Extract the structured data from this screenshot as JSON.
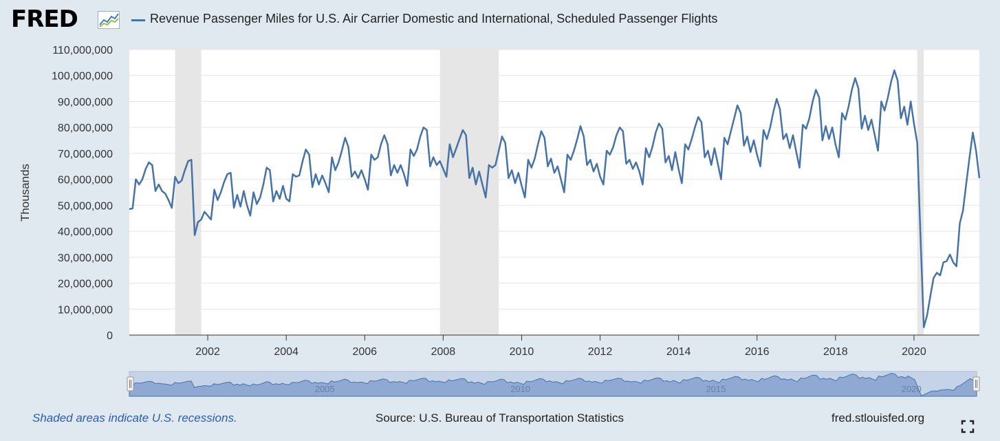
{
  "header": {
    "logo": "FRED",
    "logo_icon": "line-graph-icon",
    "title": "Revenue Passenger Miles for U.S. Air Carrier Domestic and International, Scheduled Passenger Flights"
  },
  "footer": {
    "footnote": "Shaded areas indicate U.S. recessions.",
    "source": "Source: U.S. Bureau of Transportation Statistics",
    "site": "fred.stlouisfed.org",
    "expand_icon": "fullscreen-icon"
  },
  "colors": {
    "series": "#4572a7",
    "recession": "#e6e6e6",
    "background": "#e1e9f0",
    "navigator_fill": "#8fa9d3"
  },
  "chart_data": {
    "type": "line",
    "title": "Revenue Passenger Miles for U.S. Air Carrier Domestic and International, Scheduled Passenger Flights",
    "xlabel": "",
    "ylabel": "Thousands",
    "x_start": "2000-01",
    "x_end": "2021-09",
    "ylim": [
      0,
      110000000
    ],
    "y_ticks": [
      0,
      10000000,
      20000000,
      30000000,
      40000000,
      50000000,
      60000000,
      70000000,
      80000000,
      90000000,
      100000000,
      110000000
    ],
    "x_ticks": [
      "2002",
      "2004",
      "2006",
      "2008",
      "2010",
      "2012",
      "2014",
      "2016",
      "2018",
      "2020"
    ],
    "navigator_ticks": [
      "2005",
      "2010",
      "2015",
      "2020"
    ],
    "recessions": [
      [
        "2001-03",
        "2001-11"
      ],
      [
        "2007-12",
        "2009-06"
      ],
      [
        "2020-02",
        "2020-04"
      ]
    ],
    "grid": true,
    "legend": "top-left",
    "series": [
      {
        "name": "Revenue Passenger Miles for U.S. Air Carrier Domestic and International, Scheduled Passenger Flights",
        "values": [
          48500000,
          48800000,
          60000000,
          58000000,
          60000000,
          64000000,
          66500000,
          65500000,
          55500000,
          58000000,
          55500000,
          54500000,
          52000000,
          49000000,
          61000000,
          58500000,
          59500000,
          63500000,
          67000000,
          67500000,
          38500000,
          43500000,
          44500000,
          47500000,
          46000000,
          44500000,
          56000000,
          52000000,
          55000000,
          59000000,
          62000000,
          62500000,
          49000000,
          54000000,
          49500000,
          55500000,
          50000000,
          46000000,
          55000000,
          50500000,
          53000000,
          58000000,
          64500000,
          63500000,
          51500000,
          55500000,
          52500000,
          57500000,
          52500000,
          51500000,
          62000000,
          61000000,
          61500000,
          67000000,
          71500000,
          69500000,
          57000000,
          62000000,
          58000000,
          61500000,
          58500000,
          55000000,
          68500000,
          63500000,
          66500000,
          71000000,
          76000000,
          72500000,
          61000000,
          63000000,
          60500000,
          63500000,
          60000000,
          56000000,
          69500000,
          67500000,
          68500000,
          73500000,
          77000000,
          73500000,
          61500000,
          65500000,
          62500000,
          65500000,
          62000000,
          57500000,
          71500000,
          69000000,
          71500000,
          76500000,
          80000000,
          79000000,
          65000000,
          68500000,
          65500000,
          67000000,
          64000000,
          61000000,
          73500000,
          68500000,
          72000000,
          75500000,
          79000000,
          77000000,
          60500000,
          64500000,
          58000000,
          63000000,
          58000000,
          53000000,
          65500000,
          64500000,
          65500000,
          71000000,
          76500000,
          74000000,
          60500000,
          63500000,
          58500000,
          62500000,
          57500000,
          53000000,
          67500000,
          64500000,
          68000000,
          73500000,
          78500000,
          76000000,
          65000000,
          68000000,
          62500000,
          65000000,
          60000000,
          55000000,
          69500000,
          67500000,
          71000000,
          75500000,
          80500000,
          76500000,
          65500000,
          67500000,
          63000000,
          66000000,
          61000000,
          58000000,
          71000000,
          69500000,
          72500000,
          77000000,
          80000000,
          78500000,
          66000000,
          67500000,
          64000000,
          66500000,
          63000000,
          58000000,
          72000000,
          68500000,
          72500000,
          78000000,
          81500000,
          79500000,
          66500000,
          69000000,
          63500000,
          70500000,
          64000000,
          58500000,
          73500000,
          71500000,
          75500000,
          80000000,
          84000000,
          82000000,
          68500000,
          71000000,
          65500000,
          72000000,
          66000000,
          60000000,
          76000000,
          73500000,
          78500000,
          83500000,
          88500000,
          85500000,
          73000000,
          76500000,
          70500000,
          75000000,
          69500000,
          65000000,
          79000000,
          75500000,
          80000000,
          86000000,
          91000000,
          87000000,
          75500000,
          77500000,
          72000000,
          77000000,
          70500000,
          64500000,
          81000000,
          79500000,
          83500000,
          90000000,
          94500000,
          91500000,
          75000000,
          80500000,
          75500000,
          80000000,
          73500000,
          68500000,
          85500000,
          83000000,
          88000000,
          94500000,
          99000000,
          95000000,
          79500000,
          84500000,
          79000000,
          83000000,
          77000000,
          71000000,
          90000000,
          86500000,
          91500000,
          97500000,
          102000000,
          98000000,
          83500000,
          88000000,
          81000000,
          90000000,
          81500000,
          74000000,
          38000000,
          3000000,
          7500000,
          15000000,
          22000000,
          24000000,
          23000000,
          28000000,
          28500000,
          31000000,
          28000000,
          26500000,
          43000000,
          48000000,
          58500000,
          68500000,
          78000000,
          71000000,
          60500000
        ]
      }
    ]
  }
}
